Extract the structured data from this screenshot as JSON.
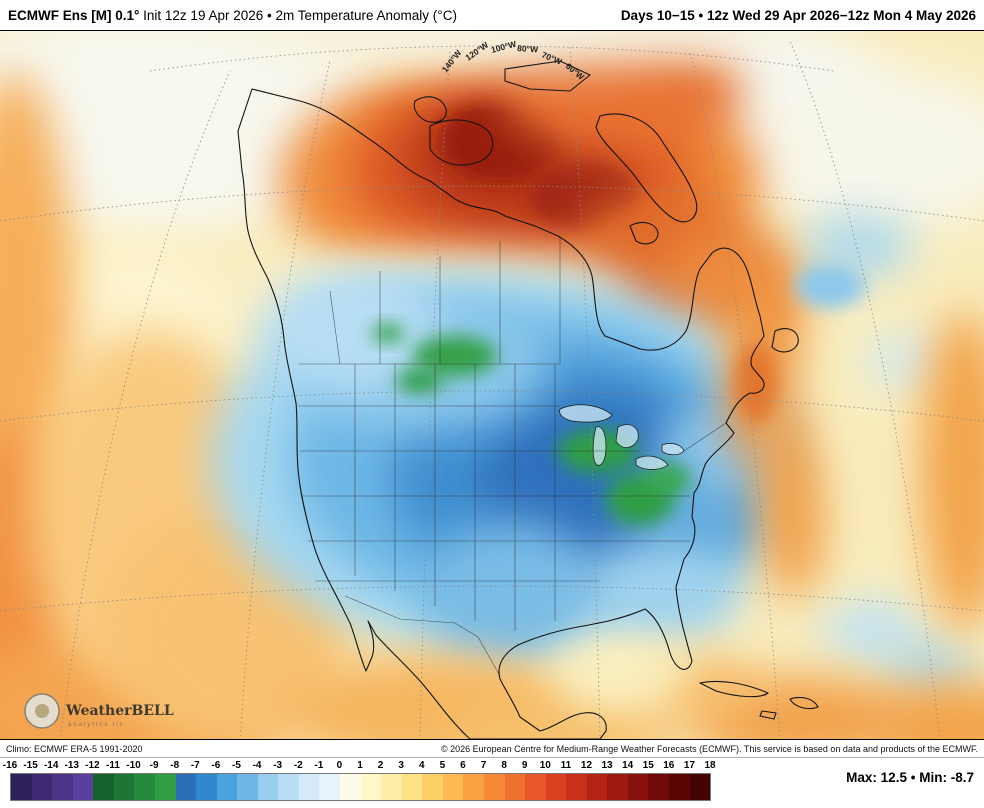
{
  "header": {
    "product_bold": "ECMWF Ens [M] 0.1°",
    "product_rest": " Init 12z 19 Apr 2026 • 2m Temperature Anomaly (°C)",
    "valid_range": "Days 10−15 • 12z Wed 29 Apr 2026−12z Mon 4 May 2026"
  },
  "map": {
    "graticule_labels": [
      "140°W",
      "120°W",
      "100°W",
      "80°W",
      "70°W",
      "60°W"
    ],
    "logo_title": "WeatherBELL",
    "logo_subtitle": "analytics llc"
  },
  "attribution": {
    "climo": "Climo: ECMWF ERA-5 1991-2020",
    "copyright": "© 2026 European Centre for Medium-Range Weather Forecasts (ECMWF). This service is based on data and products of the ECMWF."
  },
  "colorbar": {
    "unit": "°C",
    "ticks": [
      "-16",
      "-15",
      "-14",
      "-13",
      "-12",
      "-11",
      "-10",
      "-9",
      "-8",
      "-7",
      "-6",
      "-5",
      "-4",
      "-3",
      "-2",
      "-1",
      "0",
      "1",
      "2",
      "3",
      "4",
      "5",
      "6",
      "7",
      "8",
      "9",
      "10",
      "11",
      "12",
      "13",
      "14",
      "15",
      "16",
      "17",
      "18"
    ],
    "colors": [
      "#2f205c",
      "#3d2a72",
      "#4b3488",
      "#5a3f9e",
      "#17622c",
      "#1e7634",
      "#268a3c",
      "#2f9e44",
      "#2a6fb8",
      "#2f8acd",
      "#4aa3dc",
      "#6fb8e6",
      "#97cdee",
      "#b9ddf4",
      "#d4eaf8",
      "#e8f4fb",
      "#fefce8",
      "#fef7c8",
      "#feefa6",
      "#fee286",
      "#fdd067",
      "#fcba52",
      "#f9a243",
      "#f68937",
      "#f0702e",
      "#e75727",
      "#da4120",
      "#c9301a",
      "#b52315",
      "#9e1910",
      "#87100c",
      "#700a08",
      "#590605",
      "#430302"
    ]
  },
  "stats": {
    "max_label": "Max:",
    "max_value": "12.5",
    "separator": "•",
    "min_label": "Min:",
    "min_value": "-8.7"
  }
}
